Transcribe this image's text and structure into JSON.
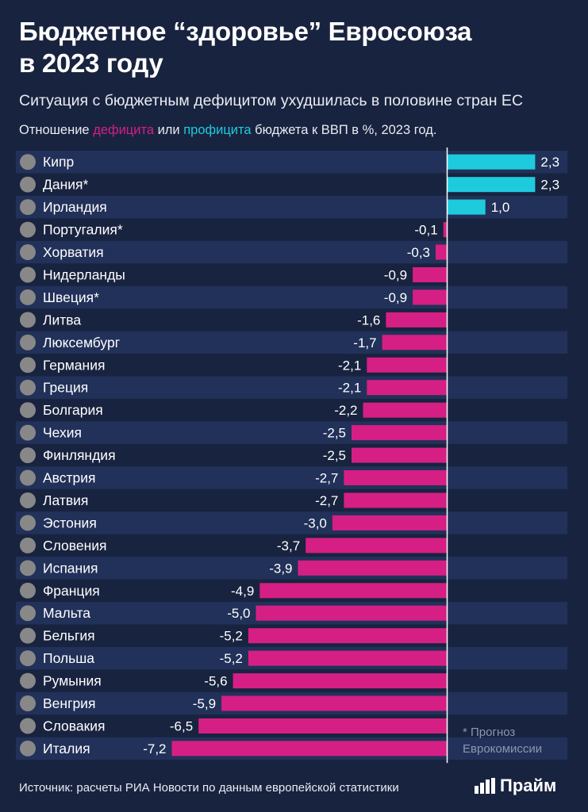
{
  "header": {
    "title_line1": "Бюджетное “здоровье” Евросоюза",
    "title_line2": "в 2023 году",
    "subtitle": "Ситуация с бюджетным дефицитом ухудшилась в половине стран ЕС"
  },
  "legend": {
    "prefix": "Отношение ",
    "deficit_word": "дефицита",
    "middle": " или ",
    "surplus_word": "профицита",
    "suffix": " бюджета к ВВП в %, 2023 год."
  },
  "colors": {
    "background": "#18233f",
    "row_band": "#223159",
    "deficit": "#d61f84",
    "surplus": "#1ecbdd",
    "axis": "#ffffff",
    "muted": "#8d96ae"
  },
  "chart_data": {
    "type": "bar",
    "orientation": "horizontal",
    "title": "Отношение дефицита или профицита бюджета к ВВП в %, 2023 год.",
    "xlabel": "",
    "ylabel": "",
    "xlim": [
      -7.5,
      2.6
    ],
    "categories": [
      "Кипр",
      "Дания*",
      "Ирландия",
      "Португалия*",
      "Хорватия",
      "Нидерланды",
      "Швеция*",
      "Литва",
      "Люксембург",
      "Германия",
      "Греция",
      "Болгария",
      "Чехия",
      "Финляндия",
      "Австрия",
      "Латвия",
      "Эстония",
      "Словения",
      "Испания",
      "Франция",
      "Мальта",
      "Бельгия",
      "Польша",
      "Румыния",
      "Венгрия",
      "Словакия",
      "Италия"
    ],
    "values": [
      2.3,
      2.3,
      1.0,
      -0.1,
      -0.3,
      -0.9,
      -0.9,
      -1.6,
      -1.7,
      -2.1,
      -2.1,
      -2.2,
      -2.5,
      -2.5,
      -2.7,
      -2.7,
      -3.0,
      -3.7,
      -3.9,
      -4.9,
      -5.0,
      -5.2,
      -5.2,
      -5.6,
      -5.9,
      -6.5,
      -7.2
    ],
    "value_labels": [
      "2,3",
      "2,3",
      "1,0",
      "-0,1",
      "-0,3",
      "-0,9",
      "-0,9",
      "-1,6",
      "-1,7",
      "-2,1",
      "-2,1",
      "-2,2",
      "-2,5",
      "-2,5",
      "-2,7",
      "-2,7",
      "-3,0",
      "-3,7",
      "-3,9",
      "-4,9",
      "-5,0",
      "-5,2",
      "-5,2",
      "-5,6",
      "-5,9",
      "-6,5",
      "-7,2"
    ],
    "flags": [
      "cyprus-flag-icon",
      "denmark-flag-icon",
      "ireland-flag-icon",
      "portugal-flag-icon",
      "croatia-flag-icon",
      "netherlands-flag-icon",
      "sweden-flag-icon",
      "lithuania-flag-icon",
      "luxembourg-flag-icon",
      "germany-flag-icon",
      "greece-flag-icon",
      "bulgaria-flag-icon",
      "czechia-flag-icon",
      "finland-flag-icon",
      "austria-flag-icon",
      "latvia-flag-icon",
      "estonia-flag-icon",
      "slovenia-flag-icon",
      "spain-flag-icon",
      "france-flag-icon",
      "malta-flag-icon",
      "belgium-flag-icon",
      "poland-flag-icon",
      "romania-flag-icon",
      "hungary-flag-icon",
      "slovakia-flag-icon",
      "italy-flag-icon"
    ]
  },
  "footnote": {
    "star": "*",
    "text": " Прогноз Еврокомиссии"
  },
  "footer": {
    "source": "Источник: расчеты РИА Новости по данным европейской статистики",
    "brand": "Прайм"
  }
}
